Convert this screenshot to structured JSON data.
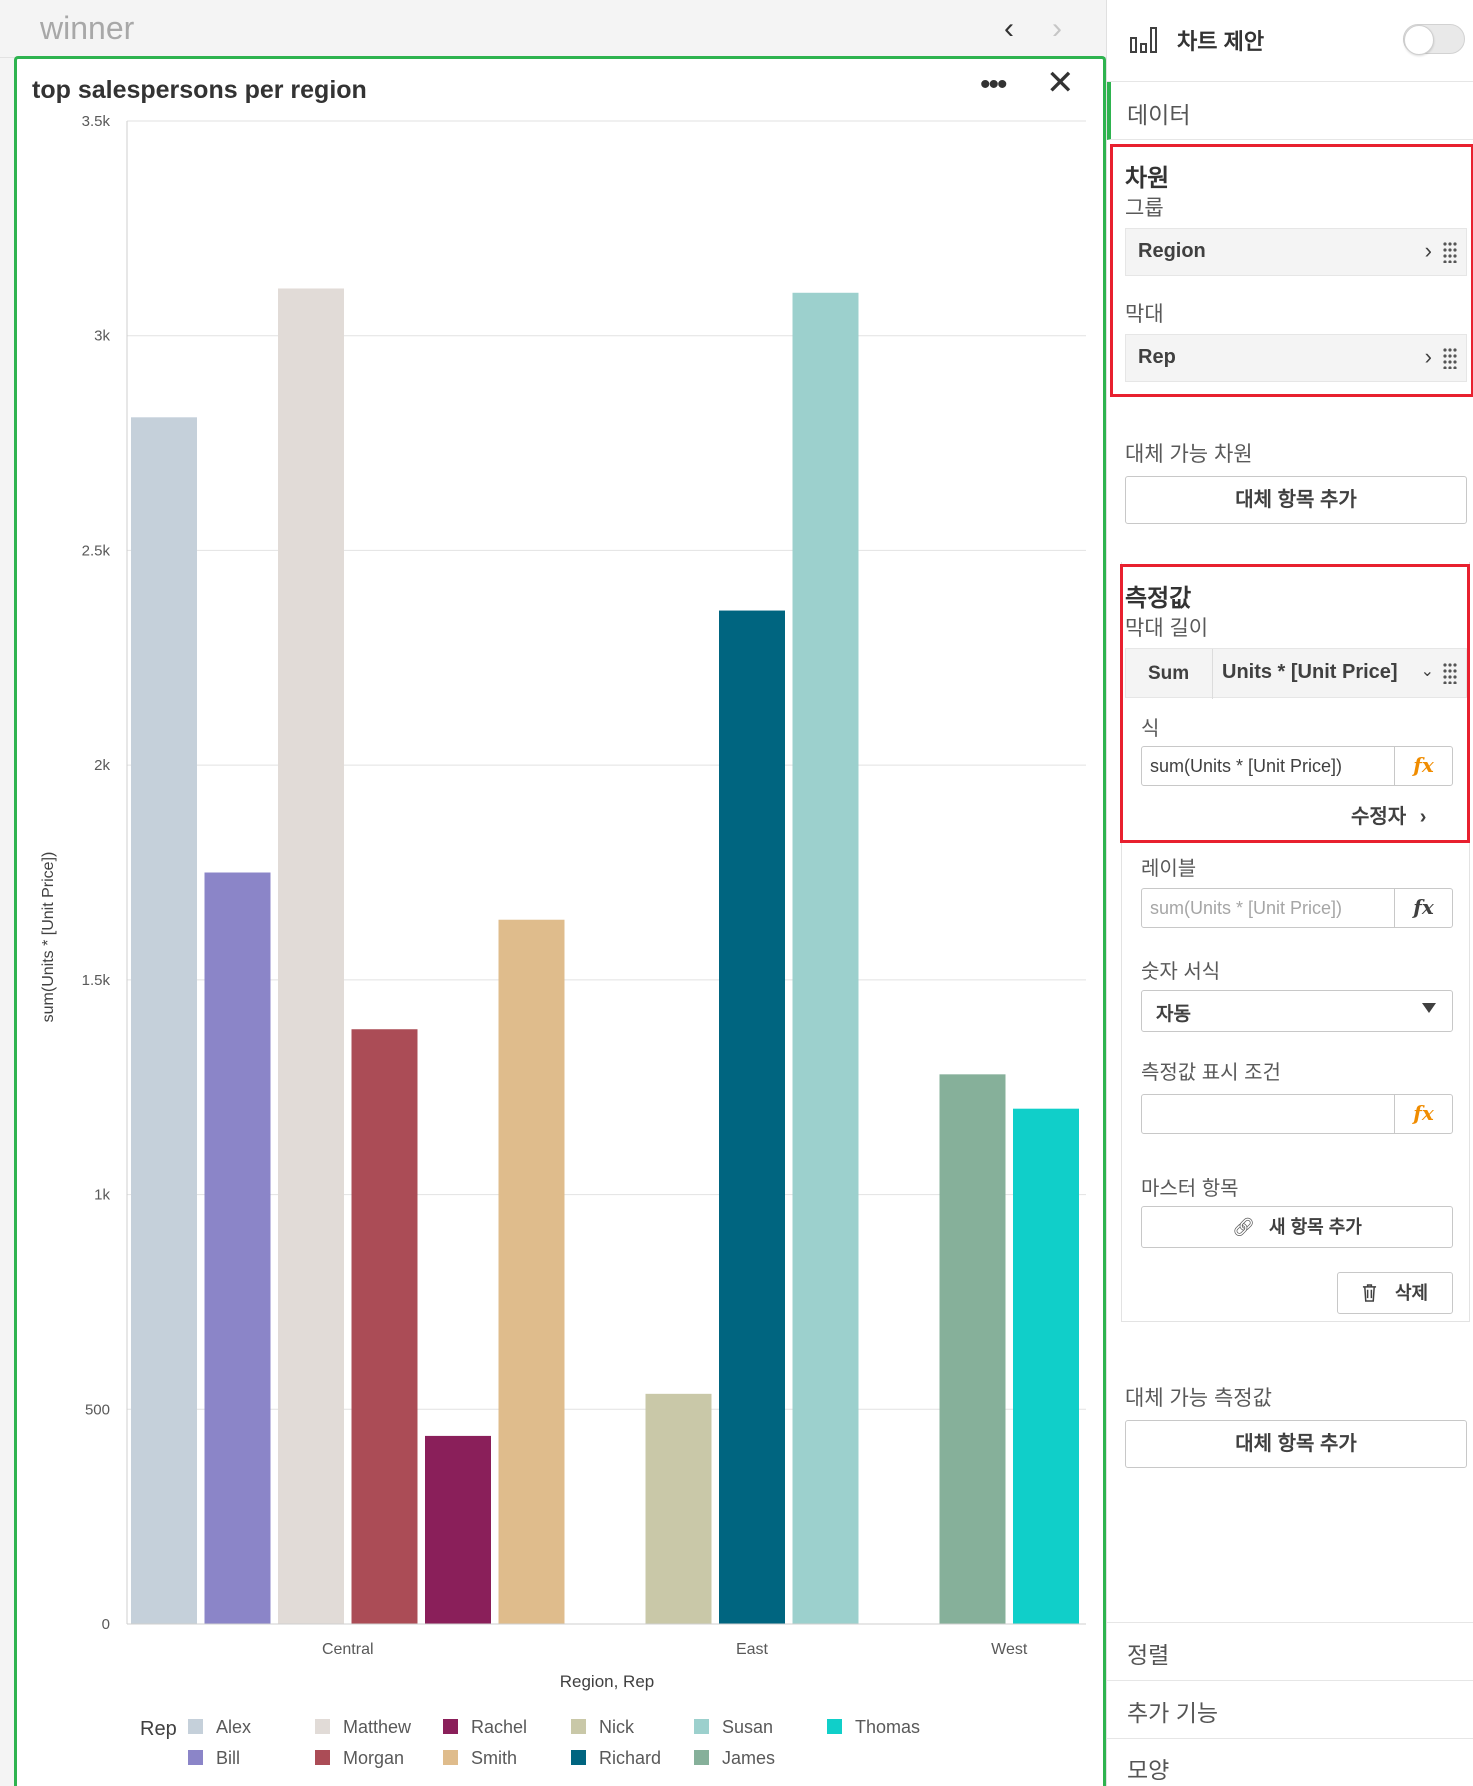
{
  "sheet": {
    "title": "winner"
  },
  "chart": {
    "title": "top salespersons per region",
    "more_label": "•••",
    "close_label": "✕"
  },
  "chart_data": {
    "type": "bar",
    "title": "top salespersons per region",
    "xlabel": "Region, Rep",
    "ylabel": "sum(Units * [Unit Price])",
    "ylim": [
      0,
      3500
    ],
    "yticks": [
      0,
      500,
      1000,
      1500,
      2000,
      2500,
      3000,
      3500
    ],
    "ytick_labels": [
      "0",
      "500",
      "1k",
      "1.5k",
      "2k",
      "2.5k",
      "3k",
      "3.5k"
    ],
    "grid": true,
    "legend_position": "bottom",
    "legend_title": "Rep",
    "groups": [
      {
        "name": "Central",
        "bars": [
          {
            "rep": "Alex",
            "value": 2810
          },
          {
            "rep": "Bill",
            "value": 1750
          },
          {
            "rep": "Matthew",
            "value": 3110
          },
          {
            "rep": "Morgan",
            "value": 1385
          },
          {
            "rep": "Rachel",
            "value": 438
          },
          {
            "rep": "Smith",
            "value": 1640
          }
        ]
      },
      {
        "name": "East",
        "bars": [
          {
            "rep": "Nick",
            "value": 536
          },
          {
            "rep": "Richard",
            "value": 2360
          },
          {
            "rep": "Susan",
            "value": 3100
          }
        ]
      },
      {
        "name": "West",
        "bars": [
          {
            "rep": "James",
            "value": 1280
          },
          {
            "rep": "Thomas",
            "value": 1200
          }
        ]
      }
    ],
    "legend": [
      {
        "label": "Alex",
        "color": "#c5d0da"
      },
      {
        "label": "Bill",
        "color": "#8b85c8"
      },
      {
        "label": "Matthew",
        "color": "#e1dbd7"
      },
      {
        "label": "Morgan",
        "color": "#ab4c56"
      },
      {
        "label": "Rachel",
        "color": "#8a1f5a"
      },
      {
        "label": "Smith",
        "color": "#dfbc8c"
      },
      {
        "label": "Nick",
        "color": "#c9c8a8"
      },
      {
        "label": "Richard",
        "color": "#006580"
      },
      {
        "label": "Susan",
        "color": "#9cd0cd"
      },
      {
        "label": "James",
        "color": "#86b09a"
      },
      {
        "label": "Thomas",
        "color": "#10cfc9"
      }
    ]
  },
  "panel": {
    "chart_suggestions_label": "차트 제안",
    "data_tab_label": "데이터",
    "dimensions": {
      "title": "차원",
      "group_label": "그룹",
      "group_field": "Region",
      "bar_label": "막대",
      "bar_field": "Rep"
    },
    "alt_dimensions": {
      "title": "대체 가능 차원",
      "add_button": "대체 항목 추가"
    },
    "measures": {
      "title": "측정값",
      "bar_length_label": "막대 길이",
      "aggregation": "Sum",
      "field": "Units * [Unit Price]",
      "expression_label": "식",
      "expression_value": "sum(Units * [Unit Price])",
      "modifier_label": "수정자",
      "label_label": "레이블",
      "label_placeholder": "sum(Units * [Unit Price])",
      "number_format_label": "숫자 서식",
      "number_format_value": "자동",
      "show_condition_label": "측정값 표시 조건",
      "master_item_label": "마스터 항목",
      "add_new_button": "새 항목 추가",
      "delete_button": "삭제",
      "fx_label": "fx"
    },
    "alt_measures": {
      "title": "대체 가능 측정값",
      "add_button": "대체 항목 추가"
    },
    "accordion": {
      "sort": "정렬",
      "addons": "추가 기능",
      "appearance": "모양"
    }
  }
}
